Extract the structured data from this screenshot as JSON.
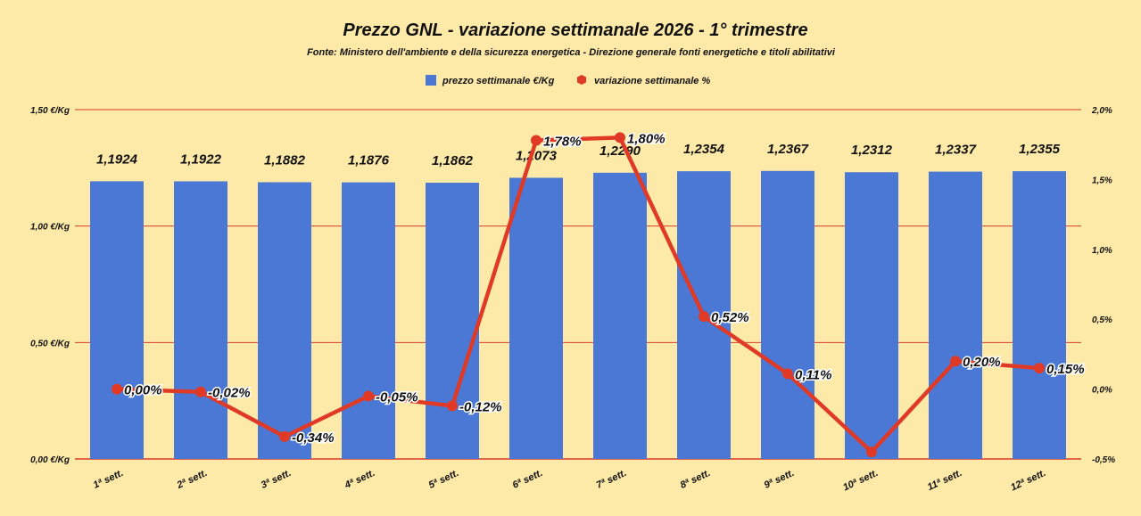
{
  "chart_data": {
    "type": "bar",
    "title": "Prezzo GNL - variazione settimanale 2026 - 1° trimestre",
    "subtitle": "Fonte: Ministero dell'ambiente e della sicurezza energetica - Direzione generale fonti energetiche e titoli abilitativi",
    "categories": [
      "1ª sett.",
      "2ª sett.",
      "3ª sett.",
      "4ª sett.",
      "5ª sett.",
      "6ª sett.",
      "7ª sett.",
      "8ª sett.",
      "9ª sett.",
      "10ª sett.",
      "11ª sett.",
      "12ª sett."
    ],
    "series": [
      {
        "name": "prezzo settimanale €/Kg",
        "type": "bar",
        "axis": "left",
        "color": "#4a78d4",
        "values": [
          1.1924,
          1.1922,
          1.1882,
          1.1876,
          1.1862,
          1.2073,
          1.229,
          1.2354,
          1.2367,
          1.2312,
          1.2337,
          1.2355
        ],
        "labels": [
          "1,1924",
          "1,1922",
          "1,1882",
          "1,1876",
          "1,1862",
          "1,2073",
          "1,2290",
          "1,2354",
          "1,2367",
          "1,2312",
          "1,2337",
          "1,2355"
        ]
      },
      {
        "name": "variazione settimanale %",
        "type": "line",
        "axis": "right",
        "color": "#e03a26",
        "values": [
          0.0,
          -0.02,
          -0.34,
          -0.05,
          -0.12,
          1.78,
          1.8,
          0.52,
          0.11,
          -0.45,
          0.2,
          0.15
        ],
        "labels": [
          "0,00%",
          "-0,02%",
          "-0,34%",
          "-0,05%",
          "-0,12%",
          "1,78%",
          "1,80%",
          "0,52%",
          "0,11%",
          "",
          "0,20%",
          "0,15%"
        ]
      }
    ],
    "y_left": {
      "range": [
        0,
        1.5
      ],
      "ticks": [
        0,
        0.5,
        1.0,
        1.5
      ],
      "tick_labels": [
        "0,00 €/Kg",
        "0,50 €/Kg",
        "1,00 €/Kg",
        "1,50 €/Kg"
      ]
    },
    "y_right": {
      "range": [
        -0.5,
        2.0
      ],
      "ticks": [
        -0.5,
        0.0,
        0.5,
        1.0,
        1.5,
        2.0
      ],
      "tick_labels": [
        "-0,5%",
        "0,0%",
        "0,5%",
        "1,0%",
        "1,5%",
        "2,0%"
      ]
    },
    "grid": true,
    "legend_position": "top-center",
    "colors": {
      "background": "#fde9a8",
      "gridline": "#d93b2b",
      "text": "#111111"
    }
  }
}
